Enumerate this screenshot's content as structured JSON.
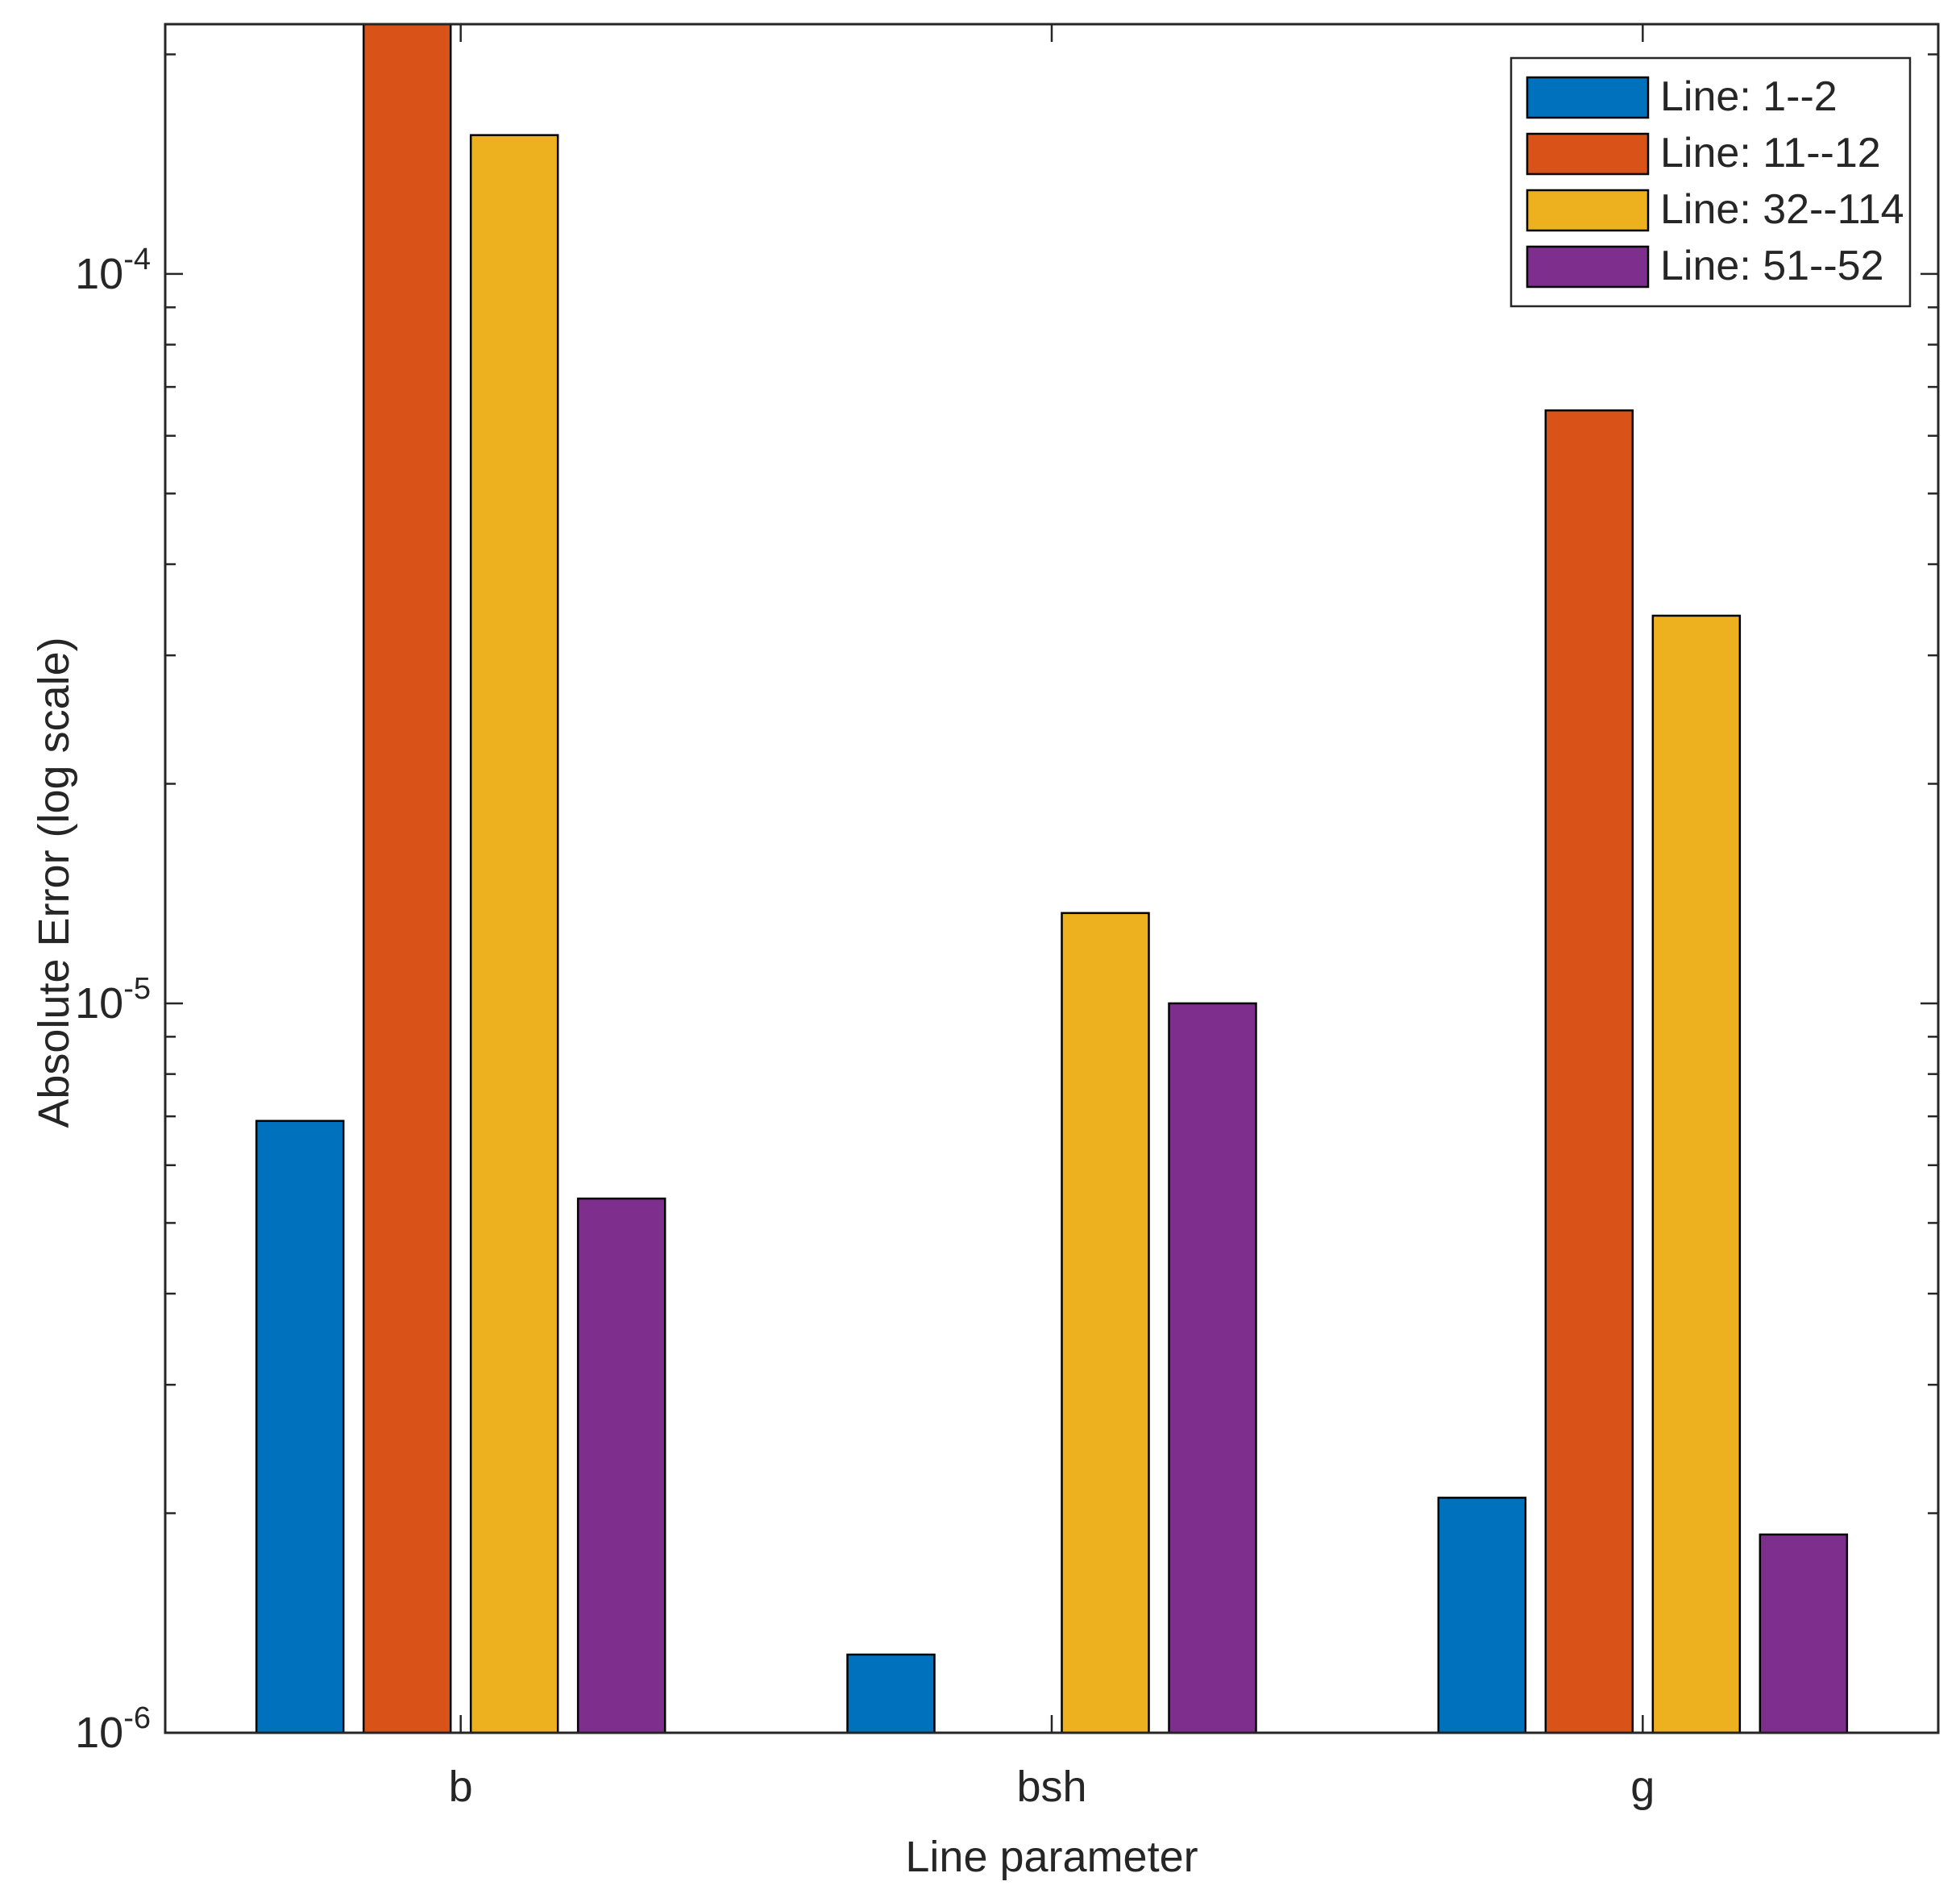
{
  "chart_data": {
    "type": "bar",
    "title": "",
    "xlabel": "Line parameter",
    "ylabel": "Absolute Error (log scale)",
    "yscale": "log",
    "ylim": [
      1e-06,
      0.00022
    ],
    "categories": [
      "b",
      "bsh",
      "g"
    ],
    "ytick_labels": [
      {
        "value": 1e-06,
        "base": "10",
        "exp": "-6"
      },
      {
        "value": 1e-05,
        "base": "10",
        "exp": "-5"
      },
      {
        "value": 0.0001,
        "base": "10",
        "exp": "-4"
      }
    ],
    "series": [
      {
        "name": "Line:  1--2",
        "color": "#0072BD",
        "values": [
          6.9e-06,
          1.28e-06,
          2.1e-06
        ]
      },
      {
        "name": "Line:  11--12",
        "color": "#D95319",
        "values": [
          0.00022,
          null,
          6.5e-05
        ]
      },
      {
        "name": "Line:  32--114",
        "color": "#EDB120",
        "values": [
          0.000155,
          1.33e-05,
          3.4e-05
        ]
      },
      {
        "name": "Line:  51--52",
        "color": "#7E2F8E",
        "values": [
          5.4e-06,
          1e-05,
          1.87e-06
        ]
      }
    ],
    "legend_position": "top-right",
    "grid": false
  }
}
